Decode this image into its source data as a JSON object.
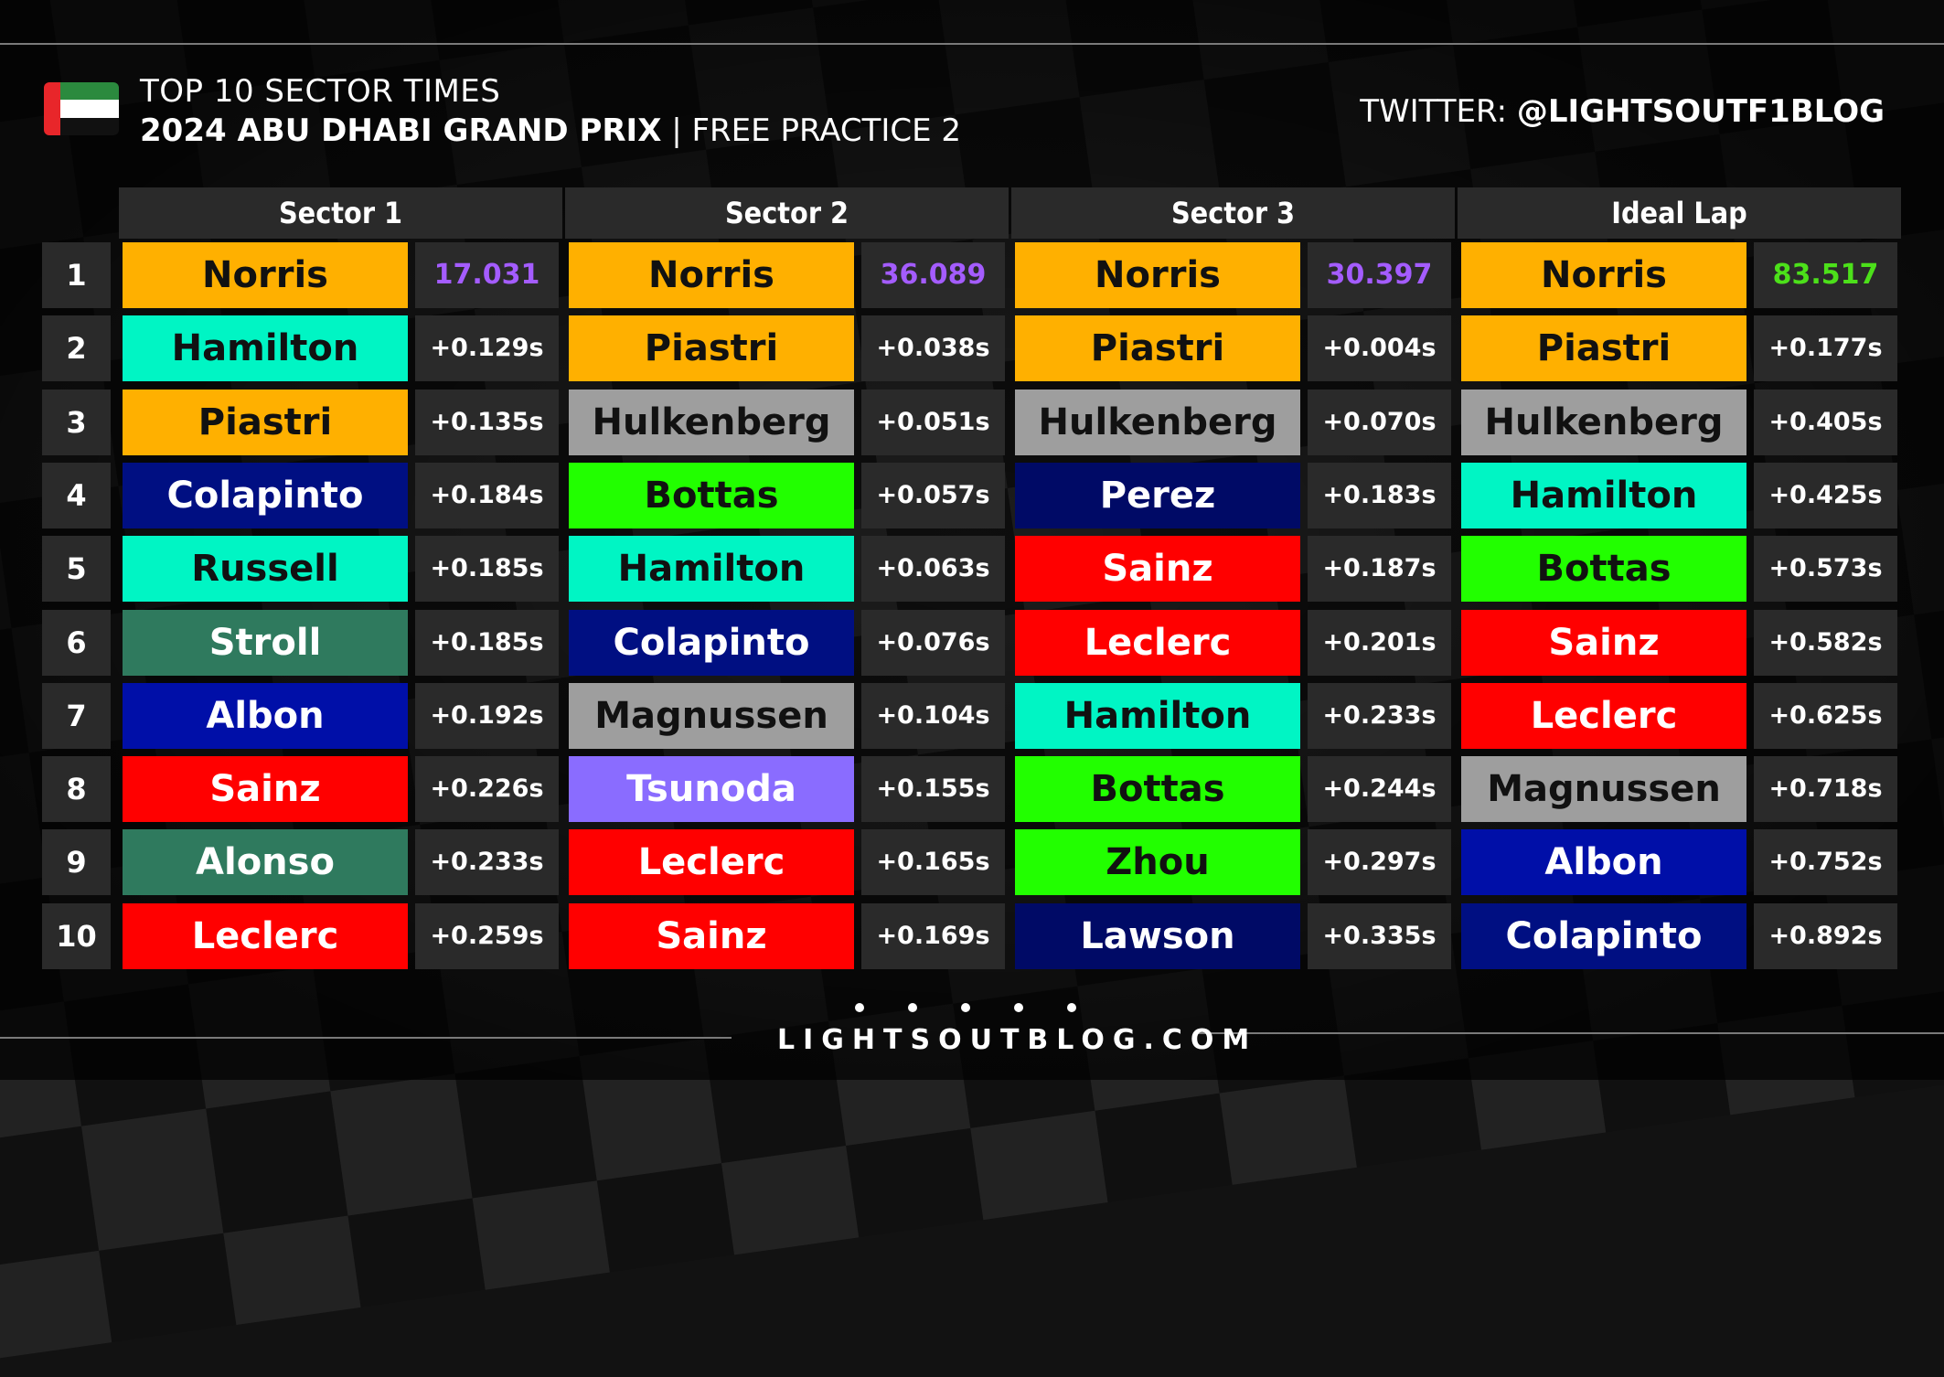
{
  "header": {
    "title_line1": "TOP 10 SECTOR TIMES",
    "title_bold": "2024 ABU DHABI GRAND PRIX",
    "title_rest": " | FREE PRACTICE 2",
    "twitter_label": "TWITTER: ",
    "twitter_handle": "@LIGHTSOUTF1BLOG"
  },
  "columns": [
    "Sector 1",
    "Sector 2",
    "Sector 3",
    "Ideal Lap"
  ],
  "positions": [
    "1",
    "2",
    "3",
    "4",
    "5",
    "6",
    "7",
    "8",
    "9",
    "10"
  ],
  "colors": {
    "McLaren": "#ffb000",
    "Mercedes": "#00f5c4",
    "Williams": "#000f82",
    "AstonMartin": "#2f7a5e",
    "WilliamsAlbon": "#000fa8",
    "Ferrari": "#ff0000",
    "Haas": "#9e9e9e",
    "Sauber": "#22ff00",
    "RedBull": "#000a66",
    "RB": "#8a6cff",
    "fastest_sector": "#a45cff",
    "fastest_lap": "#4ce01a"
  },
  "sectors": [
    {
      "rows": [
        {
          "driver": "Norris",
          "team": "McLaren",
          "time": "17.031"
        },
        {
          "driver": "Hamilton",
          "team": "Mercedes",
          "time": "+0.129s"
        },
        {
          "driver": "Piastri",
          "team": "McLaren",
          "time": "+0.135s"
        },
        {
          "driver": "Colapinto",
          "team": "Williams",
          "time": "+0.184s"
        },
        {
          "driver": "Russell",
          "team": "Mercedes",
          "time": "+0.185s"
        },
        {
          "driver": "Stroll",
          "team": "AstonMartin",
          "time": "+0.185s"
        },
        {
          "driver": "Albon",
          "team": "WilliamsAlbon",
          "time": "+0.192s"
        },
        {
          "driver": "Sainz",
          "team": "Ferrari",
          "time": "+0.226s"
        },
        {
          "driver": "Alonso",
          "team": "AstonMartin",
          "time": "+0.233s"
        },
        {
          "driver": "Leclerc",
          "team": "Ferrari",
          "time": "+0.259s"
        }
      ]
    },
    {
      "rows": [
        {
          "driver": "Norris",
          "team": "McLaren",
          "time": "36.089"
        },
        {
          "driver": "Piastri",
          "team": "McLaren",
          "time": "+0.038s"
        },
        {
          "driver": "Hulkenberg",
          "team": "Haas",
          "time": "+0.051s"
        },
        {
          "driver": "Bottas",
          "team": "Sauber",
          "time": "+0.057s"
        },
        {
          "driver": "Hamilton",
          "team": "Mercedes",
          "time": "+0.063s"
        },
        {
          "driver": "Colapinto",
          "team": "Williams",
          "time": "+0.076s"
        },
        {
          "driver": "Magnussen",
          "team": "Haas",
          "time": "+0.104s"
        },
        {
          "driver": "Tsunoda",
          "team": "RB",
          "time": "+0.155s"
        },
        {
          "driver": "Leclerc",
          "team": "Ferrari",
          "time": "+0.165s"
        },
        {
          "driver": "Sainz",
          "team": "Ferrari",
          "time": "+0.169s"
        }
      ]
    },
    {
      "rows": [
        {
          "driver": "Norris",
          "team": "McLaren",
          "time": "30.397"
        },
        {
          "driver": "Piastri",
          "team": "McLaren",
          "time": "+0.004s"
        },
        {
          "driver": "Hulkenberg",
          "team": "Haas",
          "time": "+0.070s"
        },
        {
          "driver": "Perez",
          "team": "RedBull",
          "time": "+0.183s"
        },
        {
          "driver": "Sainz",
          "team": "Ferrari",
          "time": "+0.187s"
        },
        {
          "driver": "Leclerc",
          "team": "Ferrari",
          "time": "+0.201s"
        },
        {
          "driver": "Hamilton",
          "team": "Mercedes",
          "time": "+0.233s"
        },
        {
          "driver": "Bottas",
          "team": "Sauber",
          "time": "+0.244s"
        },
        {
          "driver": "Zhou",
          "team": "Sauber",
          "time": "+0.297s"
        },
        {
          "driver": "Lawson",
          "team": "RedBull",
          "time": "+0.335s"
        }
      ]
    },
    {
      "rows": [
        {
          "driver": "Norris",
          "team": "McLaren",
          "time": "83.517"
        },
        {
          "driver": "Piastri",
          "team": "McLaren",
          "time": "+0.177s"
        },
        {
          "driver": "Hulkenberg",
          "team": "Haas",
          "time": "+0.405s"
        },
        {
          "driver": "Hamilton",
          "team": "Mercedes",
          "time": "+0.425s"
        },
        {
          "driver": "Bottas",
          "team": "Sauber",
          "time": "+0.573s"
        },
        {
          "driver": "Sainz",
          "team": "Ferrari",
          "time": "+0.582s"
        },
        {
          "driver": "Leclerc",
          "team": "Ferrari",
          "time": "+0.625s"
        },
        {
          "driver": "Magnussen",
          "team": "Haas",
          "time": "+0.718s"
        },
        {
          "driver": "Albon",
          "team": "WilliamsAlbon",
          "time": "+0.752s"
        },
        {
          "driver": "Colapinto",
          "team": "Williams",
          "time": "+0.892s"
        }
      ]
    }
  ],
  "footer": {
    "site": "LIGHTSOUTBLOG.COM"
  }
}
